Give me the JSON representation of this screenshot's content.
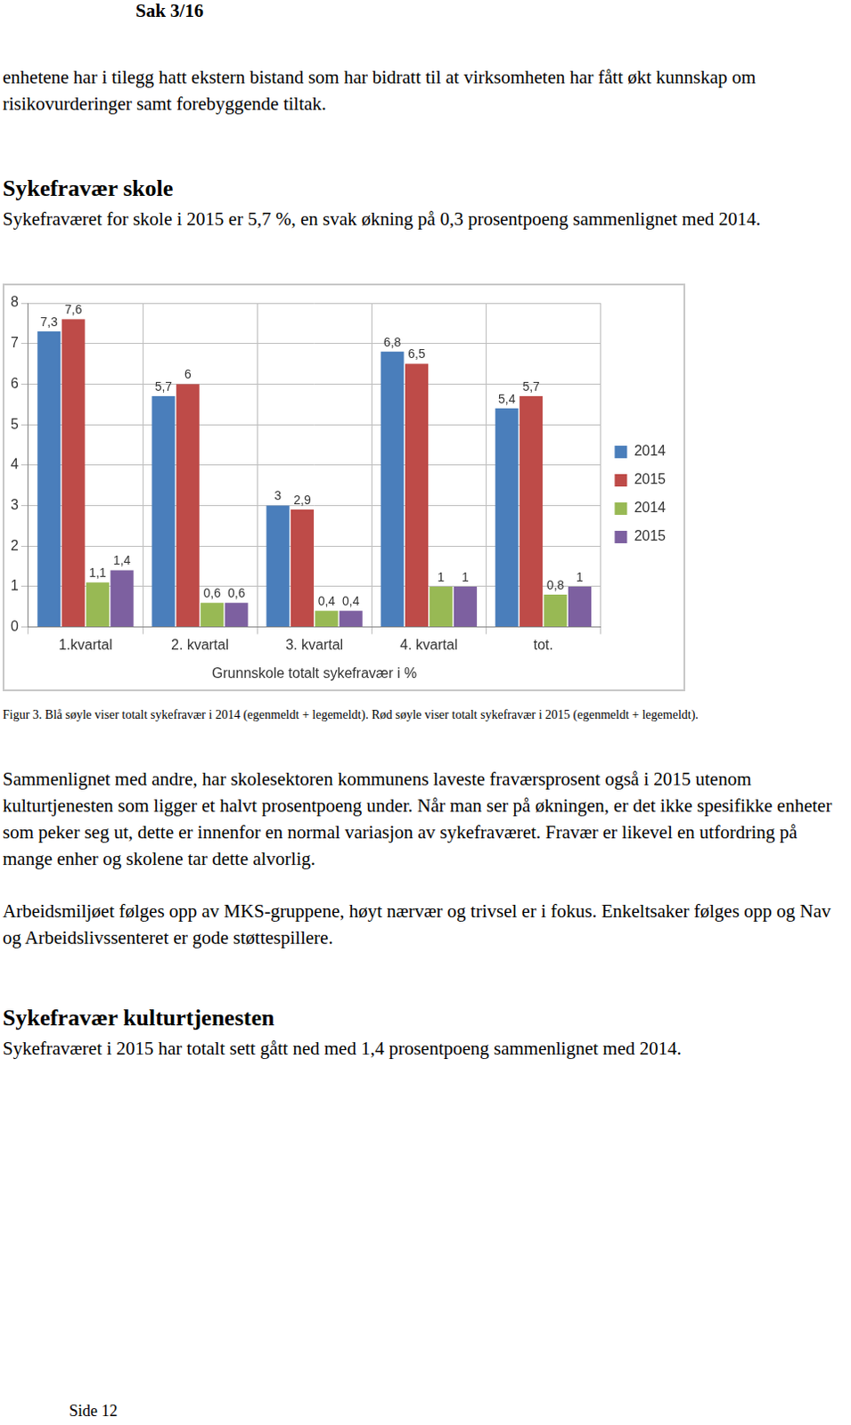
{
  "header": "Sak 3/16",
  "intro": "enhetene har i tilegg hatt ekstern bistand som har bidratt til at virksomheten har fått økt kunnskap om risikovurderinger samt forebyggende tiltak.",
  "section1": {
    "heading": "Sykefravær skole",
    "text": "Sykefraværet for skole i 2015 er 5,7 %, en svak økning på 0,3 prosentpoeng sammenlignet med 2014."
  },
  "chart_data": {
    "type": "bar",
    "x_label": "Grunnskole totalt sykefravær i %",
    "categories": [
      "1.kvartal",
      "2. kvartal",
      "3. kvartal",
      "4. kvartal",
      "tot."
    ],
    "series": [
      {
        "name": "2014",
        "color": "#4a7ebb",
        "values": [
          7.3,
          5.7,
          3,
          6.8,
          5.4
        ],
        "value_labels": [
          "7,3",
          "5,7",
          "3",
          "6,8",
          "5,4"
        ]
      },
      {
        "name": "2015",
        "color": "#be4b48",
        "values": [
          7.6,
          6,
          2.9,
          6.5,
          5.7
        ],
        "value_labels": [
          "7,6",
          "6",
          "2,9",
          "6,5",
          "5,7"
        ]
      },
      {
        "name": "2014",
        "color": "#98b954",
        "values": [
          1.1,
          0.6,
          0.4,
          1,
          0.8
        ],
        "value_labels": [
          "1,1",
          "0,6",
          "0,4",
          "1",
          "0,8"
        ]
      },
      {
        "name": "2015",
        "color": "#7d60a0",
        "values": [
          1.4,
          0.6,
          0.4,
          1,
          1
        ],
        "value_labels": [
          "1,4",
          "0,6",
          "0,4",
          "1",
          "1"
        ]
      }
    ],
    "ylim": [
      0,
      8
    ],
    "yticks": [
      0,
      1,
      2,
      3,
      4,
      5,
      6,
      7,
      8
    ],
    "grid": true,
    "legend": "right",
    "data_labels": true
  },
  "caption": "Figur 3. Blå søyle viser totalt sykefravær i 2014 (egenmeldt + legemeldt). Rød søyle viser totalt sykefravær i 2015 (egenmeldt + legemeldt).",
  "paragraphs": [
    "Sammenlignet med andre, har skolesektoren kommunens laveste fraværsprosent også i 2015 utenom kulturtjenesten som ligger et halvt prosentpoeng under. Når man ser på økningen, er det ikke spesifikke enheter som peker seg ut, dette er innenfor en normal variasjon av sykefraværet. Fravær er likevel en utfordring på mange enher og skolene tar dette alvorlig.",
    "Arbeidsmiljøet følges opp av MKS-gruppene, høyt nærvær og trivsel er i fokus. Enkeltsaker følges opp og Nav og Arbeidslivssenteret er gode støttespillere."
  ],
  "section2": {
    "heading": "Sykefravær kulturtjenesten",
    "text": "Sykefraværet i 2015 har totalt sett gått ned med 1,4 prosentpoeng sammenlignet med 2014."
  },
  "footer": "Side 12"
}
